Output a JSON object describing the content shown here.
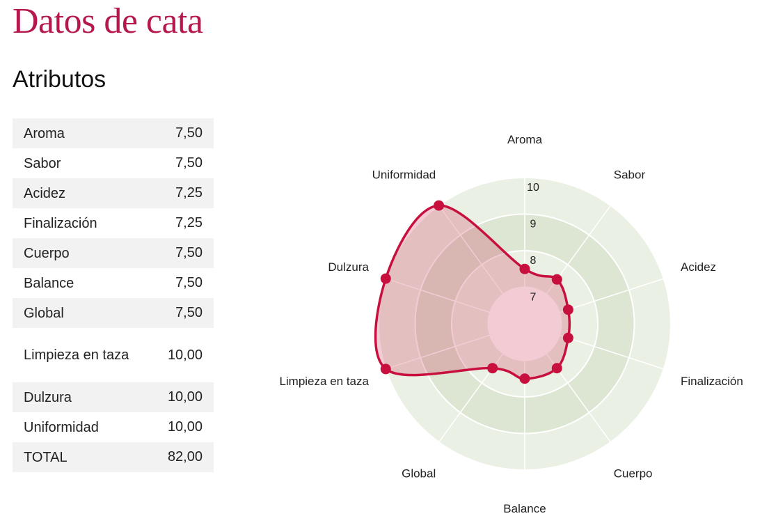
{
  "header": {
    "title": "Datos de cata",
    "subtitle": "Atributos"
  },
  "table": {
    "rows": [
      {
        "label": "Aroma",
        "value": "7,50"
      },
      {
        "label": "Sabor",
        "value": "7,50"
      },
      {
        "label": "Acidez",
        "value": "7,25"
      },
      {
        "label": "Finalización",
        "value": "7,25"
      },
      {
        "label": "Cuerpo",
        "value": "7,50"
      },
      {
        "label": "Balance",
        "value": "7,50"
      },
      {
        "label": "Global",
        "value": "7,50"
      },
      {
        "label": "Limpieza en taza",
        "value": "10,00"
      },
      {
        "label": "Dulzura",
        "value": "10,00"
      },
      {
        "label": "Uniformidad",
        "value": "10,00"
      },
      {
        "label": "TOTAL",
        "value": "82,00"
      }
    ]
  },
  "chart_data": {
    "type": "radar",
    "categories": [
      "Aroma",
      "Sabor",
      "Acidez",
      "Finalización",
      "Cuerpo",
      "Balance",
      "Global",
      "Limpieza en taza",
      "Dulzura",
      "Uniformidad"
    ],
    "series": [
      {
        "values": [
          7.5,
          7.5,
          7.25,
          7.25,
          7.5,
          7.5,
          7.5,
          10,
          10,
          10
        ]
      }
    ],
    "rlim": [
      6,
      10
    ],
    "radial_ticks": [
      "7",
      "8",
      "9",
      "10"
    ],
    "grid": true,
    "colors": {
      "series_line": "#c8103e",
      "series_fill": "#c8103e",
      "band_dark": "#dde6d2",
      "band_light": "#ebf0e4"
    }
  },
  "colors": {
    "title": "#b5184b",
    "row_stripe": "#f2f2f2"
  }
}
